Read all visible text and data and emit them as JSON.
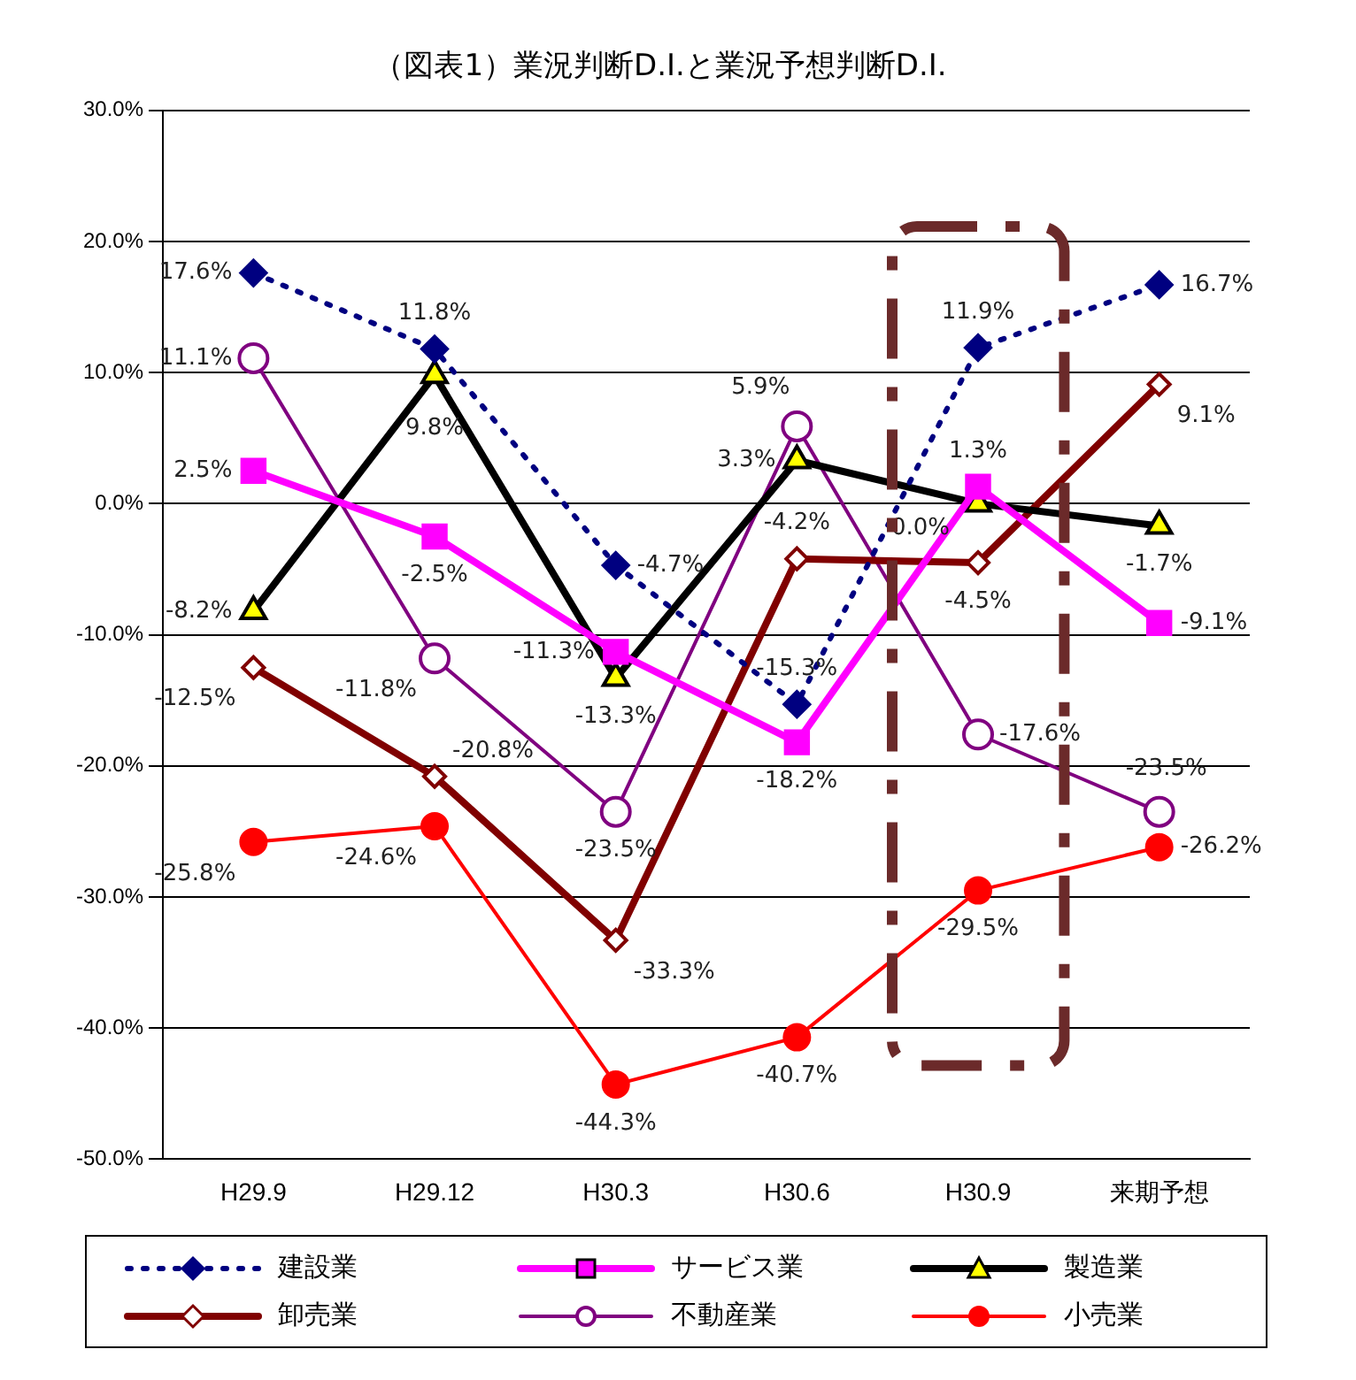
{
  "chart_data": {
    "type": "line",
    "title": "（図表1）業況判断D.I.と業況予想判断D.I.",
    "categories": [
      "H29.9",
      "H29.12",
      "H30.3",
      "H30.6",
      "H30.9",
      "来期予想"
    ],
    "series": [
      {
        "name": "建設業",
        "color": "#000080",
        "marker": "diamond",
        "line_style": "dotted",
        "values": [
          17.6,
          11.8,
          -4.7,
          -15.3,
          11.9,
          16.7
        ],
        "value_labels": [
          "17.6%",
          "11.8%",
          "-4.7%",
          "-15.3%",
          "11.9%",
          "16.7%"
        ]
      },
      {
        "name": "サービス業",
        "color": "#ff00ff",
        "marker": "square",
        "line_style": "solid",
        "values": [
          2.5,
          -2.5,
          -11.3,
          -18.2,
          1.3,
          -9.1
        ],
        "value_labels": [
          "2.5%",
          "-2.5%",
          "-11.3%",
          "-18.2%",
          "1.3%",
          "-9.1%"
        ]
      },
      {
        "name": "製造業",
        "color": "#000000",
        "marker": "triangle",
        "line_style": "solid",
        "values": [
          -8.2,
          9.8,
          -13.3,
          3.3,
          0.0,
          -1.7
        ],
        "value_labels": [
          "-8.2%",
          "9.8%",
          "-13.3%",
          "3.3%",
          "0.0%",
          "-1.7%"
        ]
      },
      {
        "name": "卸売業",
        "color": "#800000",
        "marker": "diamond",
        "line_style": "solid",
        "values": [
          -12.5,
          -20.8,
          -33.3,
          -4.2,
          -4.5,
          9.1
        ],
        "value_labels": [
          "-12.5%",
          "-20.8%",
          "-33.3%",
          "-4.2%",
          "-4.5%",
          "9.1%"
        ]
      },
      {
        "name": "不動産業",
        "color": "#800080",
        "marker": "circle",
        "line_style": "solid",
        "values": [
          11.1,
          -11.8,
          -23.5,
          5.9,
          -17.6,
          -23.5
        ],
        "value_labels": [
          "11.1%",
          "-11.8%",
          "-23.5%",
          "5.9%",
          "-17.6%",
          "-23.5%"
        ]
      },
      {
        "name": "小売業",
        "color": "#ff0000",
        "marker": "circle",
        "line_style": "solid",
        "values": [
          -25.8,
          -24.6,
          -44.3,
          -40.7,
          -29.5,
          -26.2
        ],
        "value_labels": [
          "-25.8%",
          "-24.6%",
          "-44.3%",
          "-40.7%",
          "-29.5%",
          "-26.2%"
        ]
      }
    ],
    "ylim": [
      -50,
      30
    ],
    "yticks": [
      {
        "value": -50,
        "label": "-50.0%"
      },
      {
        "value": -40,
        "label": "-40.0%"
      },
      {
        "value": -30,
        "label": "-30.0%"
      },
      {
        "value": -20,
        "label": "-20.0%"
      },
      {
        "value": -10,
        "label": "-10.0%"
      },
      {
        "value": 0,
        "label": "0.0%"
      },
      {
        "value": 10,
        "label": "10.0%"
      },
      {
        "value": 20,
        "label": "20.0%"
      },
      {
        "value": 30,
        "label": "30.0%"
      }
    ],
    "grid": "y",
    "legend": "bottom"
  }
}
